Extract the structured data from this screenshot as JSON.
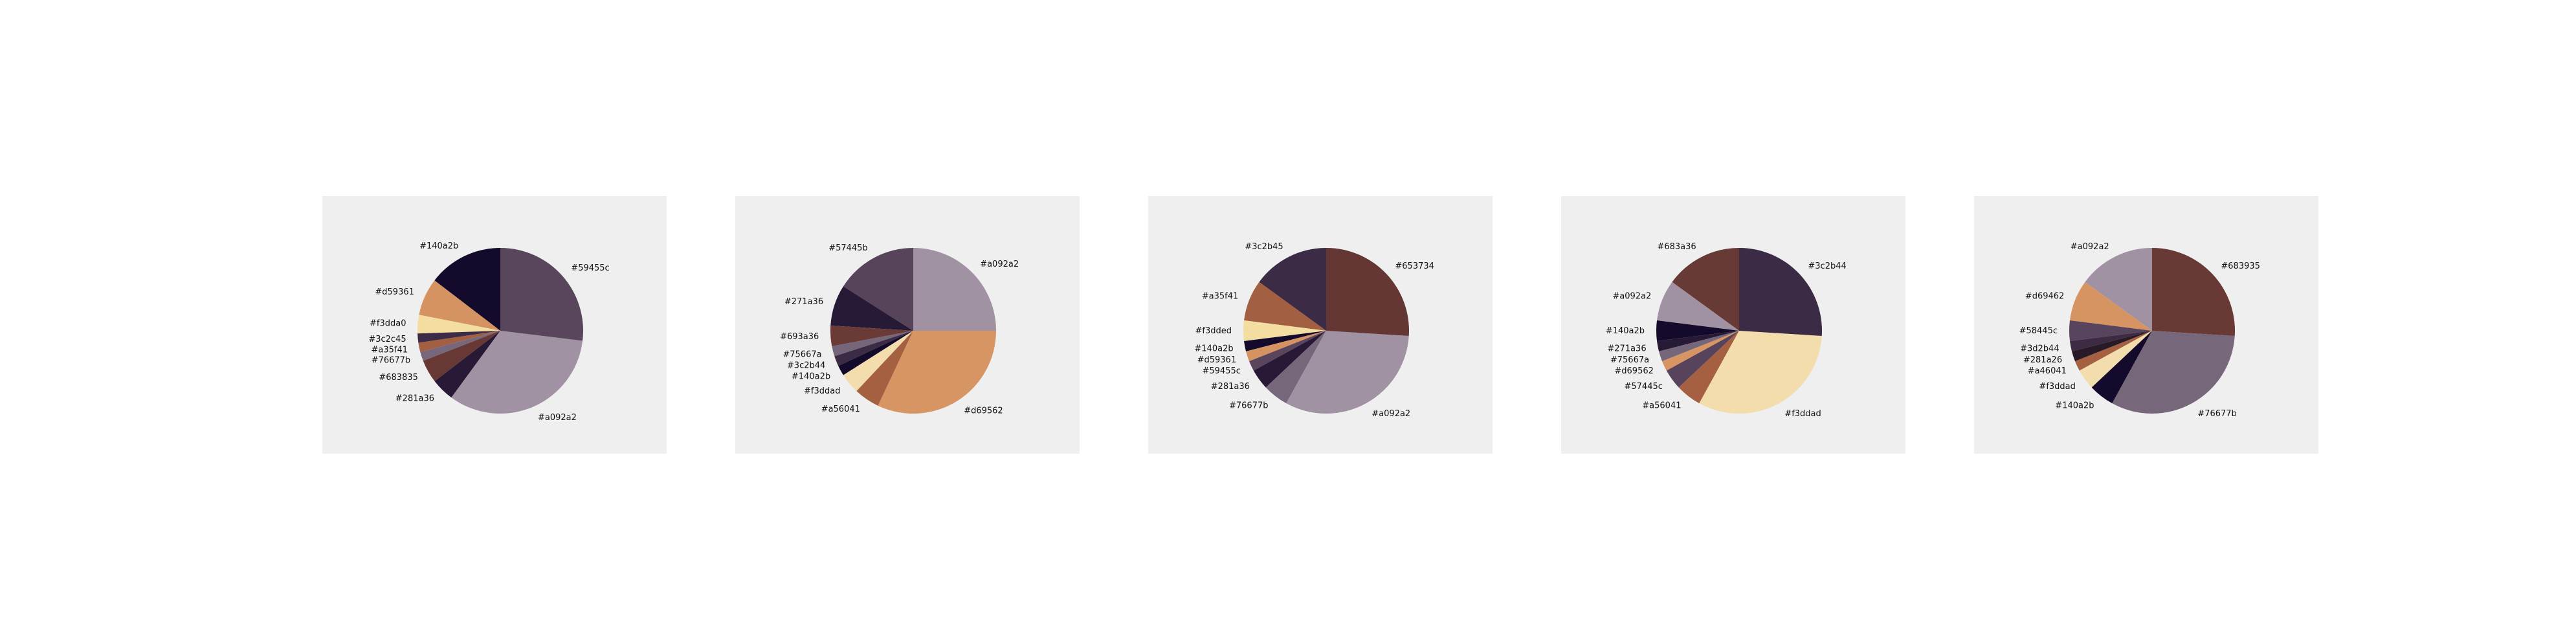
{
  "chart_data": [
    {
      "type": "pie",
      "labels": [
        "#140a2b",
        "#d59361",
        "#f3dda0",
        "#3c2c45",
        "#a35f41",
        "#76677b",
        "#683835",
        "#281a36",
        "#a092a2",
        "#59455c"
      ],
      "colors": [
        "#140a2b",
        "#d59361",
        "#f3dda0",
        "#3c2c45",
        "#a35f41",
        "#76677b",
        "#683835",
        "#281a36",
        "#a092a2",
        "#59455c"
      ],
      "values": [
        14.6,
        7.3,
        3.6,
        1.8,
        1.8,
        1.8,
        4.5,
        4.5,
        33.1,
        26.9
      ],
      "label_text": [
        "#140a2b",
        "#d59361",
        "#f3dda0",
        "#3c2c45",
        "#a35f41",
        "#76677b",
        "#683835",
        "#281a36",
        "#a092a2",
        "#59455c"
      ]
    },
    {
      "type": "pie",
      "labels": [
        "#57445b",
        "#271a36",
        "#693a36",
        "#75667a",
        "#3c2b44",
        "#140a2b",
        "#f3ddad",
        "#a56041",
        "#d69562",
        "#a092a2"
      ],
      "colors": [
        "#57445b",
        "#271a36",
        "#693a36",
        "#75667a",
        "#3c2b44",
        "#140a2b",
        "#f3ddad",
        "#a56041",
        "#d69562",
        "#a092a2"
      ],
      "values": [
        16.0,
        8.0,
        4.0,
        2.0,
        2.0,
        2.0,
        4.0,
        5.0,
        32.0,
        25.0
      ],
      "label_text": [
        "#57445b",
        "#271a36",
        "#693a36",
        "#75667a",
        "#3c2b44",
        "#140a2b",
        "#f3ddad",
        "#a56041",
        "#d69562",
        "#a092a2"
      ]
    },
    {
      "type": "pie",
      "labels": [
        "#3c2b45",
        "#a35f41",
        "#f3dded",
        "#140a2b",
        "#d59361",
        "#59455c",
        "#281a36",
        "#76677b",
        "#a092a2",
        "#653734"
      ],
      "colors": [
        "#3c2b45",
        "#a35f41",
        "#f3dda0",
        "#140a2b",
        "#d59361",
        "#59455c",
        "#281a36",
        "#76677b",
        "#a092a2",
        "#653734"
      ],
      "values": [
        15.0,
        8.0,
        4.0,
        2.0,
        2.0,
        2.0,
        4.0,
        5.0,
        32.0,
        26.0
      ],
      "label_text": [
        "#3c2b45",
        "#a35f41",
        "#f3dded",
        "#140a2b",
        "#d59361",
        "#59455c",
        "#281a36",
        "#76677b",
        "#a092a2",
        "#653734"
      ]
    },
    {
      "type": "pie",
      "labels": [
        "#683a36",
        "#a092a2",
        "#140a2b",
        "#271a36",
        "#75667a",
        "#d69562",
        "#57445c",
        "#a56041",
        "#f3ddad",
        "#3c2b44"
      ],
      "colors": [
        "#683a36",
        "#a092a2",
        "#140a2b",
        "#271a36",
        "#75667a",
        "#d69562",
        "#57445c",
        "#a56041",
        "#f3ddad",
        "#3c2b44"
      ],
      "values": [
        15.0,
        8.0,
        4.0,
        2.0,
        2.0,
        2.0,
        4.0,
        5.0,
        32.0,
        26.0
      ],
      "label_text": [
        "#683a36",
        "#a092a2",
        "#140a2b",
        "#271a36",
        "#75667a",
        "#d69562",
        "#57445c",
        "#a56041",
        "#f3ddad",
        "#3c2b44"
      ]
    },
    {
      "type": "pie",
      "labels": [
        "#a092a2",
        "#d69462",
        "#58445c",
        "#3d2b44",
        "#281a26",
        "#a46041",
        "#f3ddad",
        "#140a2b",
        "#76677b",
        "#683935"
      ],
      "colors": [
        "#a092a2",
        "#d69462",
        "#58445c",
        "#3d2b44",
        "#281a26",
        "#a46041",
        "#f3ddad",
        "#140a2b",
        "#76677b",
        "#683935"
      ],
      "values": [
        15.0,
        8.0,
        4.0,
        2.0,
        2.0,
        2.0,
        4.0,
        5.0,
        32.0,
        26.0
      ],
      "label_text": [
        "#a092a2",
        "#d69462",
        "#58445c",
        "#3d2b44",
        "#281a26",
        "#a46041",
        "#f3ddad",
        "#140a2b",
        "#76677b",
        "#683935"
      ]
    }
  ]
}
